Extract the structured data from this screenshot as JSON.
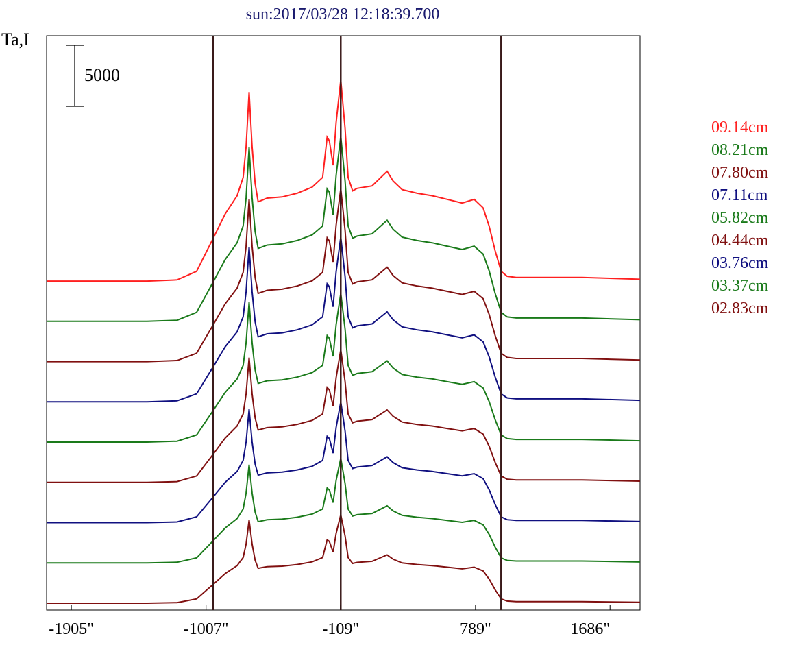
{
  "chart_data": {
    "type": "line",
    "title": "sun:2017/03/28 12:18:39.700",
    "ylabel": "Ta,I",
    "xlabel": "",
    "xlim": [
      -2070,
      1886
    ],
    "x_ticks": [
      -1905,
      -1007,
      -109,
      789,
      1686
    ],
    "x_tick_labels": [
      "-1905\"",
      "-1007\"",
      "-109\"",
      "789\"",
      "1686\""
    ],
    "vlines": [
      -960,
      -109,
      960
    ],
    "scale_bar": {
      "value": 5000,
      "label": "5000"
    },
    "y_offset_step": 3300,
    "base_profile": {
      "x": [
        -2070,
        -1905,
        -1400,
        -1200,
        -1070,
        -960,
        -880,
        -800,
        -760,
        -740,
        -720,
        -700,
        -680,
        -660,
        -600,
        -500,
        -400,
        -300,
        -230,
        -200,
        -185,
        -160,
        -140,
        -109,
        -80,
        -60,
        -30,
        0,
        100,
        200,
        240,
        300,
        400,
        500,
        600,
        700,
        780,
        840,
        880,
        920,
        960,
        1000,
        1060,
        1200,
        1500,
        1886
      ],
      "y": [
        0,
        0,
        0,
        100,
        800,
        3500,
        5500,
        7000,
        8500,
        11000,
        15500,
        11000,
        8000,
        6500,
        6800,
        6900,
        7200,
        7700,
        8500,
        11800,
        11500,
        9500,
        13000,
        16500,
        12500,
        8500,
        7400,
        7600,
        7800,
        9000,
        8200,
        7500,
        7200,
        7000,
        6700,
        6400,
        6700,
        6000,
        4500,
        2500,
        800,
        400,
        300,
        300,
        300,
        150
      ]
    },
    "series": [
      {
        "name": "09.14cm",
        "color": "#ff2020",
        "scale": 1.0,
        "legend": "09.14cm"
      },
      {
        "name": "08.21cm",
        "color": "#1a7a1a",
        "scale": 0.92,
        "legend": "08.21cm"
      },
      {
        "name": "07.80cm",
        "color": "#801010",
        "scale": 0.86,
        "legend": "07.80cm"
      },
      {
        "name": "07.11cm",
        "color": "#101080",
        "scale": 0.82,
        "legend": "07.11cm"
      },
      {
        "name": "05.82cm",
        "color": "#1a7a1a",
        "scale": 0.74,
        "legend": "05.82cm"
      },
      {
        "name": "04.44cm",
        "color": "#801010",
        "scale": 0.66,
        "legend": "04.44cm"
      },
      {
        "name": "03.76cm",
        "color": "#101080",
        "scale": 0.6,
        "legend": "03.76cm"
      },
      {
        "name": "03.37cm",
        "color": "#1a7a1a",
        "scale": 0.52,
        "legend": "03.37cm"
      },
      {
        "name": "02.83cm",
        "color": "#801010",
        "scale": 0.44,
        "legend": "02.83cm"
      }
    ]
  }
}
